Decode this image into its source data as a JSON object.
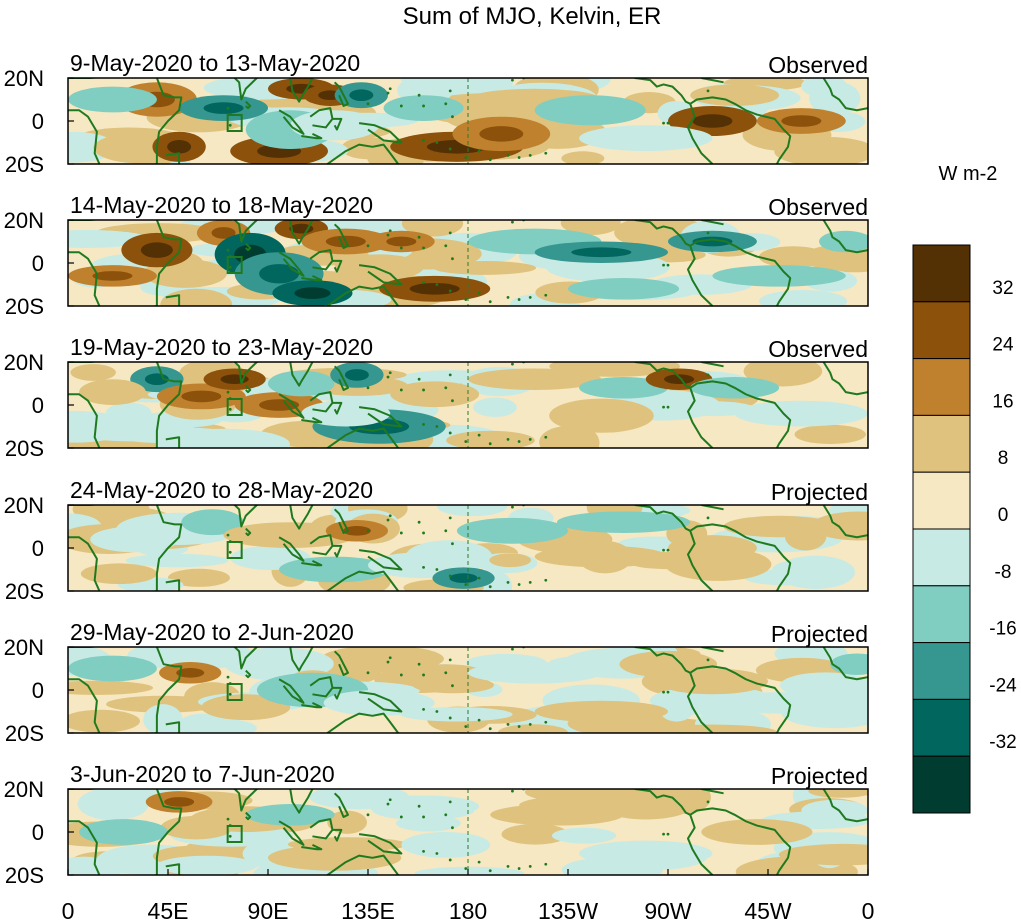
{
  "title": "Sum of MJO, Kelvin, ER",
  "panels": [
    {
      "date_range": "9-May-2020 to 13-May-2020",
      "status": "Observed"
    },
    {
      "date_range": "14-May-2020 to 18-May-2020",
      "status": "Observed"
    },
    {
      "date_range": "19-May-2020 to 23-May-2020",
      "status": "Observed"
    },
    {
      "date_range": "24-May-2020 to 28-May-2020",
      "status": "Projected"
    },
    {
      "date_range": "29-May-2020 to 2-Jun-2020",
      "status": "Projected"
    },
    {
      "date_range": "3-Jun-2020 to 7-Jun-2020",
      "status": "Projected"
    }
  ],
  "y_ticks": [
    "20N",
    "0",
    "20S"
  ],
  "x_ticks": [
    "0",
    "45E",
    "90E",
    "135E",
    "180",
    "135W",
    "90W",
    "45W",
    "0"
  ],
  "colorbar": {
    "unit": "W m-2",
    "labels": [
      "32",
      "24",
      "16",
      "8",
      "0",
      "-8",
      "-16",
      "-24",
      "-32"
    ],
    "colors": [
      "#543005",
      "#8c510a",
      "#bf812d",
      "#dfc27d",
      "#f6e8c3",
      "#c7eae5",
      "#80cdc1",
      "#35978f",
      "#01665e",
      "#003c30"
    ]
  },
  "colors": {
    "coastline": "#1f7a1f",
    "dateline": "#2d7a2d",
    "frame": "#000000"
  }
}
